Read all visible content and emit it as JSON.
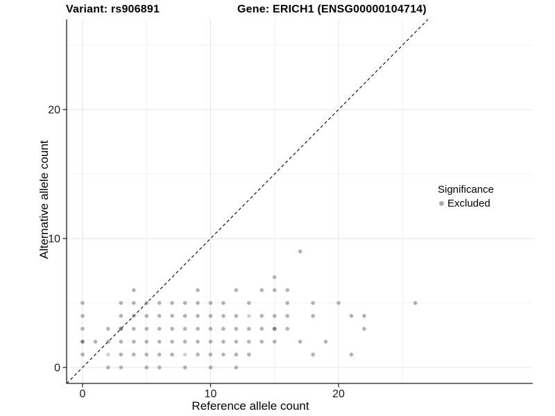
{
  "titles": {
    "variant": "Variant: rs906891",
    "gene": "Gene: ERICH1 (ENSG00000104714)"
  },
  "axes": {
    "x_label": "Reference allele count",
    "y_label": "Alternative allele count",
    "x_ticks": [
      0,
      10,
      20
    ],
    "y_ticks": [
      0,
      10,
      20
    ]
  },
  "legend": {
    "title": "Significance",
    "items": [
      {
        "label": "Excluded",
        "color": "#aaaaaa"
      }
    ]
  },
  "colors": {
    "point": "#666666",
    "grid_major": "#e5e5e5",
    "grid_minor": "#f0f0f0",
    "axis_line": "#1a1a1a",
    "identity_line": "#000000",
    "background": "#ffffff"
  },
  "chart_data": {
    "type": "scatter",
    "title": "Variant: rs906891 / Gene: ERICH1 (ENSG00000104714)",
    "xlabel": "Reference allele count",
    "ylabel": "Alternative allele count",
    "xlim": [
      -1.3,
      35
    ],
    "ylim": [
      -1.3,
      27
    ],
    "x_breaks": [
      0,
      10,
      20
    ],
    "y_breaks": [
      0,
      10,
      20
    ],
    "minor_x_breaks": [
      5,
      15,
      25
    ],
    "minor_y_breaks": [
      5,
      15,
      25
    ],
    "grid": true,
    "legend_position": "right",
    "identity_line": {
      "slope": 1,
      "intercept": 0,
      "style": "dashed"
    },
    "series": [
      {
        "name": "Excluded",
        "points": [
          [
            2,
            0
          ],
          [
            3,
            0
          ],
          [
            5,
            0
          ],
          [
            6,
            0
          ],
          [
            8,
            0
          ],
          [
            10,
            0
          ],
          [
            12,
            0
          ],
          [
            0,
            1
          ],
          [
            2,
            1,
            "l"
          ],
          [
            3,
            1
          ],
          [
            4,
            1
          ],
          [
            5,
            1
          ],
          [
            6,
            1
          ],
          [
            7,
            1
          ],
          [
            8,
            1,
            "l"
          ],
          [
            9,
            1
          ],
          [
            10,
            1
          ],
          [
            11,
            1
          ],
          [
            12,
            1
          ],
          [
            13,
            1
          ],
          [
            18,
            1
          ],
          [
            21,
            1
          ],
          [
            0,
            2,
            "d"
          ],
          [
            1,
            2
          ],
          [
            2,
            2
          ],
          [
            3,
            2
          ],
          [
            4,
            2
          ],
          [
            5,
            2
          ],
          [
            6,
            2
          ],
          [
            7,
            2
          ],
          [
            8,
            2
          ],
          [
            9,
            2
          ],
          [
            10,
            2
          ],
          [
            11,
            2
          ],
          [
            12,
            2
          ],
          [
            13,
            2
          ],
          [
            14,
            2
          ],
          [
            15,
            2
          ],
          [
            17,
            2
          ],
          [
            19,
            2
          ],
          [
            0,
            3
          ],
          [
            2,
            3
          ],
          [
            3,
            3,
            "d"
          ],
          [
            4,
            3
          ],
          [
            5,
            3
          ],
          [
            6,
            3
          ],
          [
            7,
            3
          ],
          [
            8,
            3
          ],
          [
            9,
            3
          ],
          [
            10,
            3
          ],
          [
            11,
            3
          ],
          [
            12,
            3
          ],
          [
            13,
            3
          ],
          [
            14,
            3
          ],
          [
            15,
            3,
            "d"
          ],
          [
            16,
            3
          ],
          [
            22,
            3
          ],
          [
            0,
            4
          ],
          [
            3,
            4
          ],
          [
            4,
            4
          ],
          [
            5,
            4
          ],
          [
            6,
            4
          ],
          [
            7,
            4
          ],
          [
            8,
            4
          ],
          [
            9,
            4
          ],
          [
            10,
            4
          ],
          [
            11,
            4
          ],
          [
            12,
            4
          ],
          [
            13,
            4,
            "l"
          ],
          [
            14,
            4
          ],
          [
            15,
            4
          ],
          [
            16,
            4
          ],
          [
            18,
            4
          ],
          [
            21,
            4
          ],
          [
            22,
            4
          ],
          [
            0,
            5
          ],
          [
            3,
            5
          ],
          [
            4,
            5
          ],
          [
            5,
            5
          ],
          [
            6,
            5
          ],
          [
            7,
            5
          ],
          [
            8,
            5
          ],
          [
            9,
            5
          ],
          [
            10,
            5
          ],
          [
            11,
            5
          ],
          [
            13,
            5
          ],
          [
            16,
            5
          ],
          [
            18,
            5
          ],
          [
            20,
            5
          ],
          [
            26,
            5
          ],
          [
            4,
            6
          ],
          [
            9,
            6
          ],
          [
            12,
            6
          ],
          [
            14,
            6
          ],
          [
            15,
            6
          ],
          [
            16,
            6
          ],
          [
            15,
            7
          ],
          [
            17,
            9
          ]
        ]
      }
    ]
  }
}
